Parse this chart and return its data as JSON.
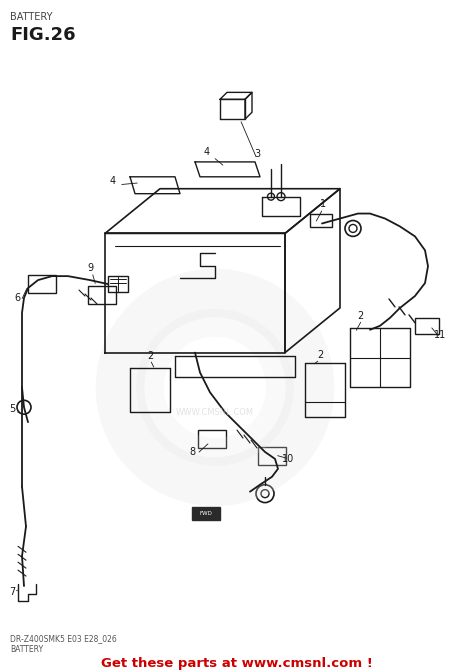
{
  "title_top": "BATTERY",
  "fig_label": "FIG.26",
  "bottom_model": "DR-Z400SMK5 E03 E28_026",
  "bottom_name": "BATTERY",
  "bottom_ad": "Get these parts at www.cmsnl.com !",
  "bg_color": "#ffffff",
  "line_color": "#1a1a1a",
  "ad_color": "#cc0000",
  "wm_color": "#e0e0e0"
}
